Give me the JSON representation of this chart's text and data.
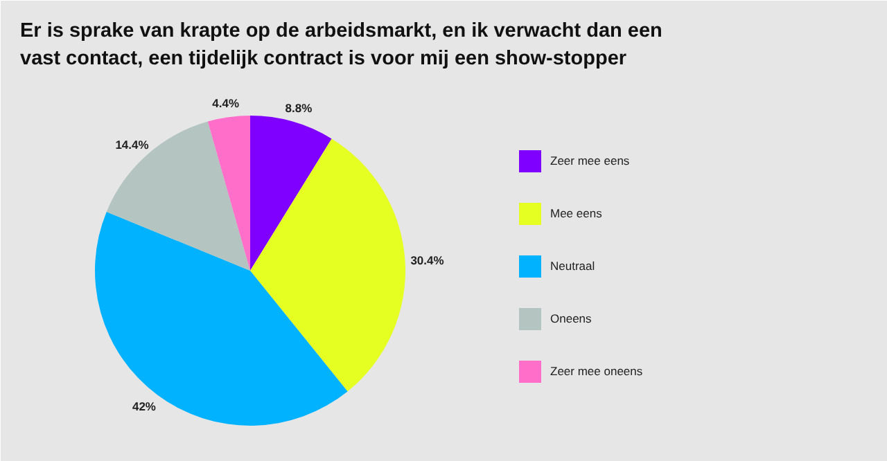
{
  "chart_data": {
    "type": "pie",
    "title": "Er is sprake van krapte op de arbeidsmarkt, en ik verwacht dan een vast contact, een tijdelijk contract is voor mij een show-stopper",
    "categories": [
      "Zeer mee eens",
      "Mee eens",
      "Neutraal",
      "Oneens",
      "Zeer mee oneens"
    ],
    "values": [
      8.8,
      30.4,
      42,
      14.4,
      4.4
    ],
    "value_labels": [
      "8.8%",
      "30.4%",
      "42%",
      "14.4%",
      "4.4%"
    ],
    "colors": [
      "#8000ff",
      "#e5ff22",
      "#00b2ff",
      "#b3c4c1",
      "#ff6fc9"
    ],
    "legend": "right"
  }
}
